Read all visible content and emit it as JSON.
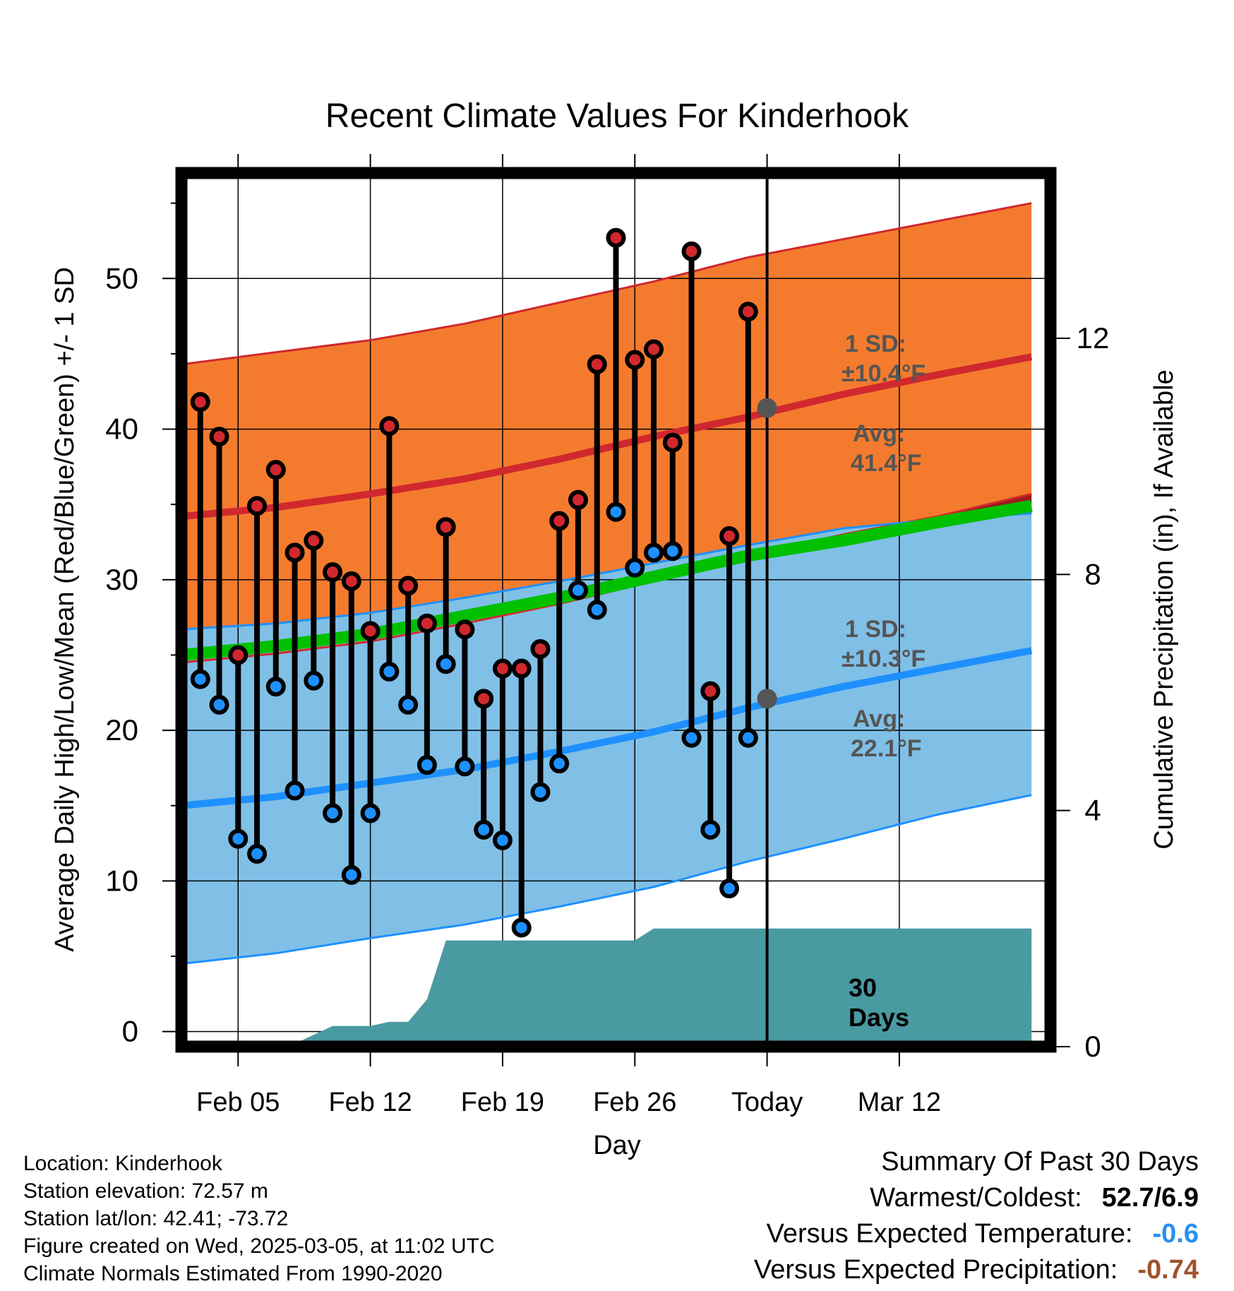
{
  "chart_data": {
    "type": "line",
    "title": "Recent Climate Values For Kinderhook",
    "xlabel": "Day",
    "ylabel_left": "Average Daily High/Low/Mean (Red/Blue/Green) +/- 1 SD",
    "ylabel_right": "Cumulative Precipitation (in), If Available",
    "x_range": [
      0,
      46
    ],
    "today_index": 31,
    "ylim_left": [
      -1,
      57
    ],
    "ylim_right": [
      0,
      14.8
    ],
    "x_ticks": [
      {
        "index": 3,
        "label": "Feb 05"
      },
      {
        "index": 10,
        "label": "Feb 12"
      },
      {
        "index": 17,
        "label": "Feb 19"
      },
      {
        "index": 24,
        "label": "Feb 26"
      },
      {
        "index": 31,
        "label": "Today"
      },
      {
        "index": 38,
        "label": "Mar 12"
      }
    ],
    "y_ticks_left": [
      0,
      10,
      20,
      30,
      40,
      50
    ],
    "y_ticks_right": [
      0,
      4,
      8,
      12
    ],
    "series": [
      {
        "name": "Observed High",
        "color": "#d0282e",
        "values": [
          41.8,
          39.5,
          25.0,
          34.9,
          37.3,
          31.8,
          32.6,
          30.5,
          29.9,
          26.6,
          40.2,
          29.6,
          27.1,
          33.5,
          26.7,
          22.1,
          24.1,
          24.1,
          25.4,
          33.9,
          35.3,
          44.3,
          52.7,
          44.6,
          45.3,
          39.1,
          51.8,
          22.6,
          32.9,
          47.8
        ]
      },
      {
        "name": "Observed Low",
        "color": "#1e90ff",
        "values": [
          23.4,
          21.7,
          12.8,
          11.8,
          22.9,
          16.0,
          23.3,
          14.5,
          10.4,
          14.5,
          23.9,
          21.7,
          17.7,
          24.4,
          17.6,
          13.4,
          12.7,
          6.9,
          15.9,
          17.8,
          29.3,
          28.0,
          34.5,
          30.8,
          31.8,
          31.9,
          19.5,
          13.4,
          9.5,
          19.5
        ]
      },
      {
        "name": "Normal High",
        "color": "#d0282e",
        "x": [
          0,
          5,
          10,
          15,
          20,
          25,
          30,
          35,
          40,
          45
        ],
        "values": [
          34.2,
          34.8,
          35.7,
          36.7,
          38.0,
          39.5,
          40.8,
          42.3,
          43.6,
          44.8
        ]
      },
      {
        "name": "Normal High +1 SD",
        "color": "#d0282e",
        "x": [
          0,
          5,
          10,
          15,
          20,
          25,
          30,
          35,
          40,
          45
        ],
        "values": [
          44.3,
          45.1,
          45.9,
          47.0,
          48.4,
          49.8,
          51.4,
          52.6,
          53.8,
          55.0
        ]
      },
      {
        "name": "Normal High -1 SD",
        "color": "#d0282e",
        "x": [
          0,
          5,
          10,
          15,
          20,
          25,
          30,
          35,
          40,
          45
        ],
        "values": [
          24.5,
          25.1,
          25.9,
          27.1,
          28.4,
          29.9,
          31.6,
          33.0,
          34.2,
          35.7
        ]
      },
      {
        "name": "Normal Mean",
        "color": "#00c000",
        "x": [
          0,
          5,
          10,
          15,
          20,
          25,
          30,
          35,
          40,
          45
        ],
        "values": [
          25.0,
          25.6,
          26.4,
          27.6,
          28.8,
          30.2,
          31.6,
          32.6,
          33.8,
          34.9
        ]
      },
      {
        "name": "Normal Low",
        "color": "#1e90ff",
        "x": [
          0,
          5,
          10,
          15,
          20,
          25,
          30,
          35,
          40,
          45
        ],
        "values": [
          15.0,
          15.6,
          16.5,
          17.4,
          18.6,
          19.9,
          21.5,
          22.9,
          24.1,
          25.3
        ]
      },
      {
        "name": "Normal Low +1 SD",
        "color": "#1e90ff",
        "x": [
          0,
          5,
          10,
          15,
          20,
          25,
          30,
          35,
          40,
          45
        ],
        "values": [
          26.7,
          27.1,
          27.8,
          28.8,
          29.9,
          31.1,
          32.3,
          33.4,
          34.0,
          34.4
        ]
      },
      {
        "name": "Normal Low -1 SD",
        "color": "#1e90ff",
        "x": [
          0,
          5,
          10,
          15,
          20,
          25,
          30,
          35,
          40,
          45
        ],
        "values": [
          4.5,
          5.2,
          6.2,
          7.1,
          8.3,
          9.6,
          11.3,
          12.8,
          14.4,
          15.7
        ]
      },
      {
        "name": "Cumulative Precipitation",
        "color": "#4a9aa2",
        "x": [
          0,
          5,
          6,
          7,
          8,
          9,
          10,
          11,
          12,
          13,
          14,
          15,
          22,
          23,
          24,
          25,
          30,
          45
        ],
        "values": [
          0,
          0,
          0.05,
          0.2,
          0.35,
          0.35,
          0.35,
          0.42,
          0.42,
          0.8,
          1.8,
          1.8,
          1.8,
          1.8,
          1.8,
          2.0,
          2.0,
          2.0
        ]
      }
    ],
    "annotations": {
      "high_sd_label": "1 SD:",
      "high_sd_value": "±10.4°F",
      "high_avg_label": "Avg:",
      "high_avg_value": "41.4°F",
      "high_avg_temp": 41.4,
      "low_sd_label": "1 SD:",
      "low_sd_value": "±10.3°F",
      "low_avg_label": "Avg:",
      "low_avg_value": "22.1°F",
      "low_avg_temp": 22.1,
      "window_label_1": "30",
      "window_label_2": "Days"
    }
  },
  "footer": {
    "location": "Location: Kinderhook",
    "elevation": "Station elevation: 72.57 m",
    "latlon": "Station lat/lon: 42.41; -73.72",
    "created": "Figure created on Wed, 2025-03-05, at 11:02 UTC",
    "normals": "Climate Normals Estimated From 1990-2020"
  },
  "summary": {
    "title": "Summary Of Past 30 Days",
    "warm_cold_label": "Warmest/Coldest:",
    "warm_cold_value": "52.7/6.9",
    "temp_label": "Versus Expected Temperature:",
    "temp_value": "-0.6",
    "temp_color": "#2a90f0",
    "precip_label": "Versus Expected Precipitation:",
    "precip_value": "-0.74",
    "precip_color": "#a0522d"
  },
  "colors": {
    "high_band": "#f47b2e",
    "low_band": "#80bfe6",
    "mean_line": "#00c000",
    "high_line": "#d0282e",
    "low_line": "#1e90ff",
    "precip_fill": "#4a9aa2",
    "overlap_band": "#9b1b1b"
  }
}
